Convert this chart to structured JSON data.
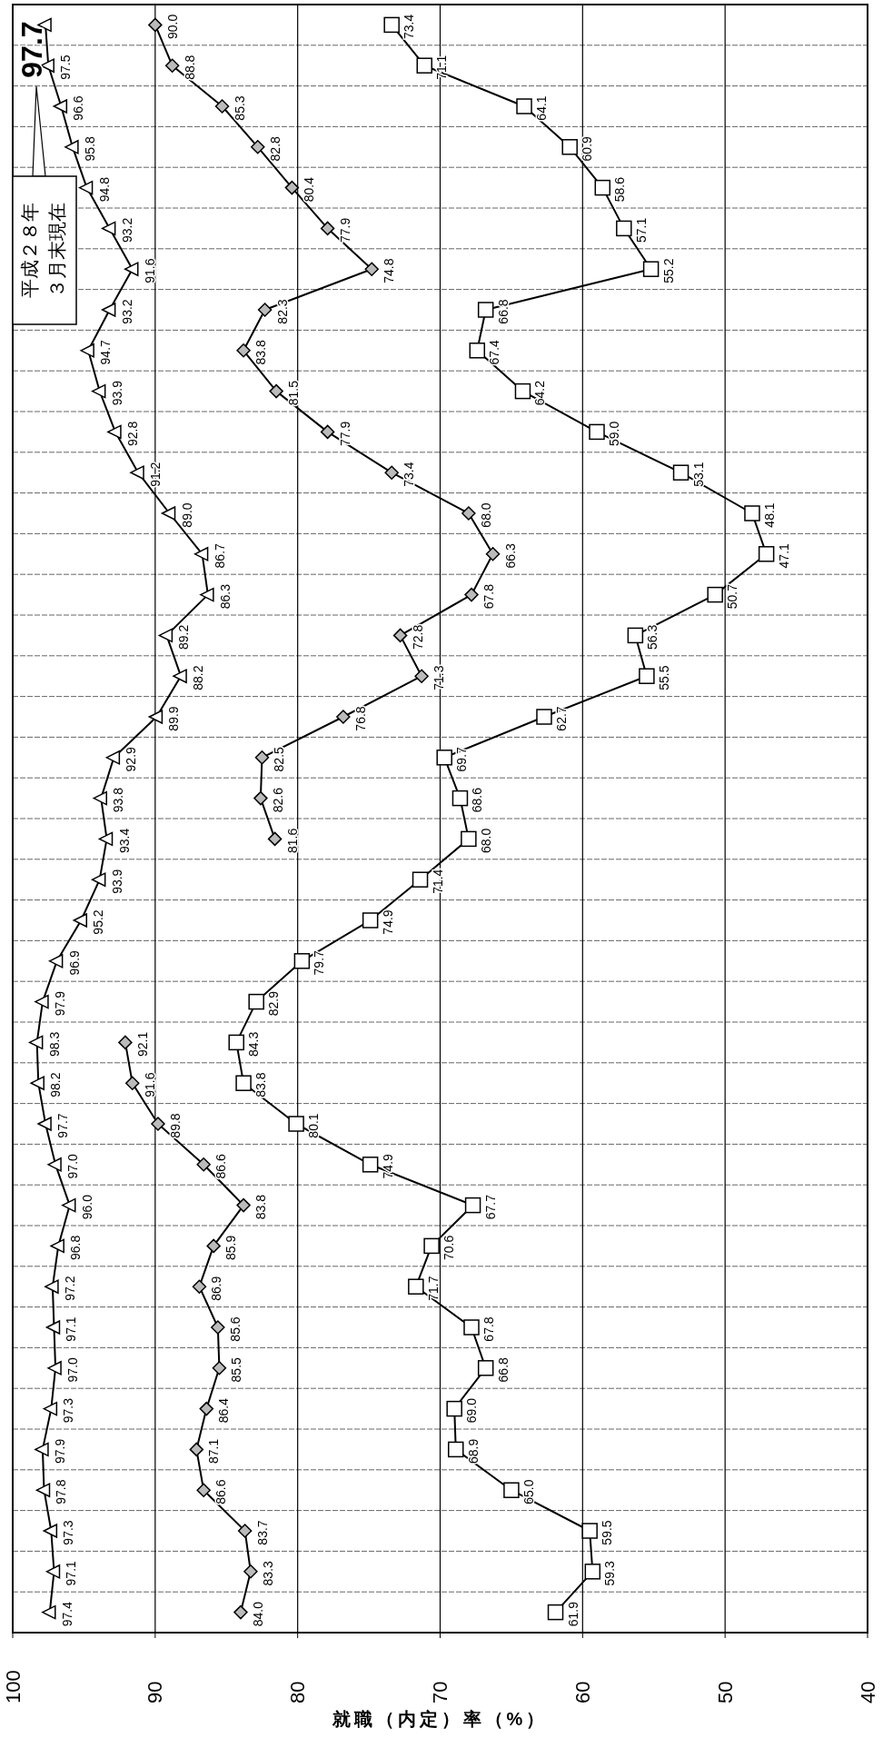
{
  "chart_data": {
    "type": "line",
    "orientation": "horizontal",
    "xlabel": "就職（内定）率（%）",
    "annotations": [
      "平成２８年",
      "３月末現在"
    ],
    "categories": [
      null,
      null,
      null,
      null,
      null,
      null,
      null,
      null,
      null,
      null,
      null,
      null,
      null,
      null,
      null,
      null,
      null,
      null,
      null,
      null,
      null,
      null,
      null,
      null,
      null,
      null,
      null,
      null,
      null,
      null,
      null,
      null,
      null,
      null,
      null,
      null,
      null,
      null,
      null,
      null
    ],
    "series": [
      {
        "color": "#000000",
        "marker": "triangle",
        "values": [
          97.7,
          97.5,
          96.6,
          95.8,
          94.8,
          93.2,
          91.6,
          93.2,
          94.7,
          93.9,
          92.8,
          91.2,
          89.0,
          86.7,
          86.3,
          89.2,
          88.2,
          89.9,
          92.9,
          93.8,
          93.4,
          93.9,
          95.2,
          96.9,
          97.9,
          98.3,
          98.2,
          97.7,
          97.0,
          96.0,
          96.8,
          97.2,
          97.1,
          97.0,
          97.3,
          97.9,
          97.8,
          97.3,
          97.1,
          97.4
        ],
        "value_labels": [
          "97.7",
          "97.5",
          "96.6",
          "95.8",
          "94.8",
          "93.2",
          "91.6",
          "93.2",
          "94.7",
          "93.9",
          "92.8",
          "91.2",
          "89.0",
          "86.7",
          "86.3",
          "89.2",
          "88.2",
          "89.9",
          "92.9",
          "93.8",
          "93.4",
          "93.9",
          "95.2",
          "96.9",
          "97.9",
          "98.3",
          "98.2",
          "97.7",
          "97.0",
          "96.0",
          "96.8",
          "97.2",
          "97.1",
          "97.0",
          "97.3",
          "97.9",
          "97.8",
          "97.3",
          "97.1",
          "97.4"
        ]
      },
      {
        "color": "#000000",
        "marker": "diamond",
        "values": [
          90.0,
          88.8,
          85.3,
          82.8,
          80.4,
          77.9,
          74.8,
          82.3,
          83.8,
          81.5,
          77.9,
          73.4,
          68.0,
          66.3,
          67.8,
          72.8,
          71.3,
          76.8,
          82.5,
          82.6,
          81.6,
          null,
          null,
          null,
          null,
          92.1,
          91.6,
          89.8,
          86.6,
          83.8,
          85.9,
          86.9,
          85.6,
          85.5,
          86.4,
          87.1,
          86.6,
          83.7,
          83.3,
          84.0
        ],
        "value_labels": [
          "90.0",
          "88.8",
          "85.3",
          "82.8",
          "80.4",
          "77.9",
          "74.8",
          "82.3",
          "83.8",
          "81.5",
          "77.9",
          "73.4",
          "68.0",
          "66.3",
          "67.8",
          "72.8",
          "71.3",
          "76.8",
          "82.5",
          "82.6",
          "81.6",
          null,
          null,
          null,
          null,
          "92.1",
          "91.6",
          "89.8",
          "86.6",
          "83.8",
          "85.9",
          "86.9",
          "85.6",
          "85.5",
          "86.4",
          "87.1",
          "86.6",
          "83.7",
          "83.3",
          "84.0"
        ]
      },
      {
        "color": "#000000",
        "marker": "square",
        "values": [
          73.4,
          71.1,
          64.1,
          60.9,
          58.6,
          57.1,
          55.2,
          66.8,
          67.4,
          64.2,
          59.0,
          53.1,
          48.1,
          47.1,
          50.7,
          56.3,
          55.5,
          62.7,
          69.7,
          68.6,
          68.0,
          71.4,
          74.9,
          79.7,
          82.9,
          84.3,
          83.8,
          80.1,
          74.9,
          67.7,
          70.6,
          71.7,
          67.8,
          66.8,
          69.0,
          68.9,
          65.0,
          59.5,
          59.3,
          61.9
        ],
        "value_labels": [
          "73.4",
          "71.1",
          "64.1",
          "60.9",
          "58.6",
          "57.1",
          "55.2",
          "66.8",
          "67.4",
          "64.2",
          "59.0",
          "53.1",
          "48.1",
          "47.1",
          "50.7",
          "56.3",
          "55.5",
          "62.7",
          "69.7",
          "68.6",
          "68.0",
          "71.4",
          "74.9",
          "79.7",
          "82.9",
          "84.3",
          "83.8",
          "80.1",
          "74.9",
          "67.7",
          "70.6",
          "71.7",
          "67.8",
          "66.8",
          "69.0",
          "68.9",
          "65.0",
          "59.5",
          "59.3",
          "61.9"
        ]
      }
    ],
    "xlim": [
      100,
      40
    ],
    "xticks": [
      100,
      90,
      80,
      70,
      60,
      50,
      40
    ],
    "grid": true
  }
}
